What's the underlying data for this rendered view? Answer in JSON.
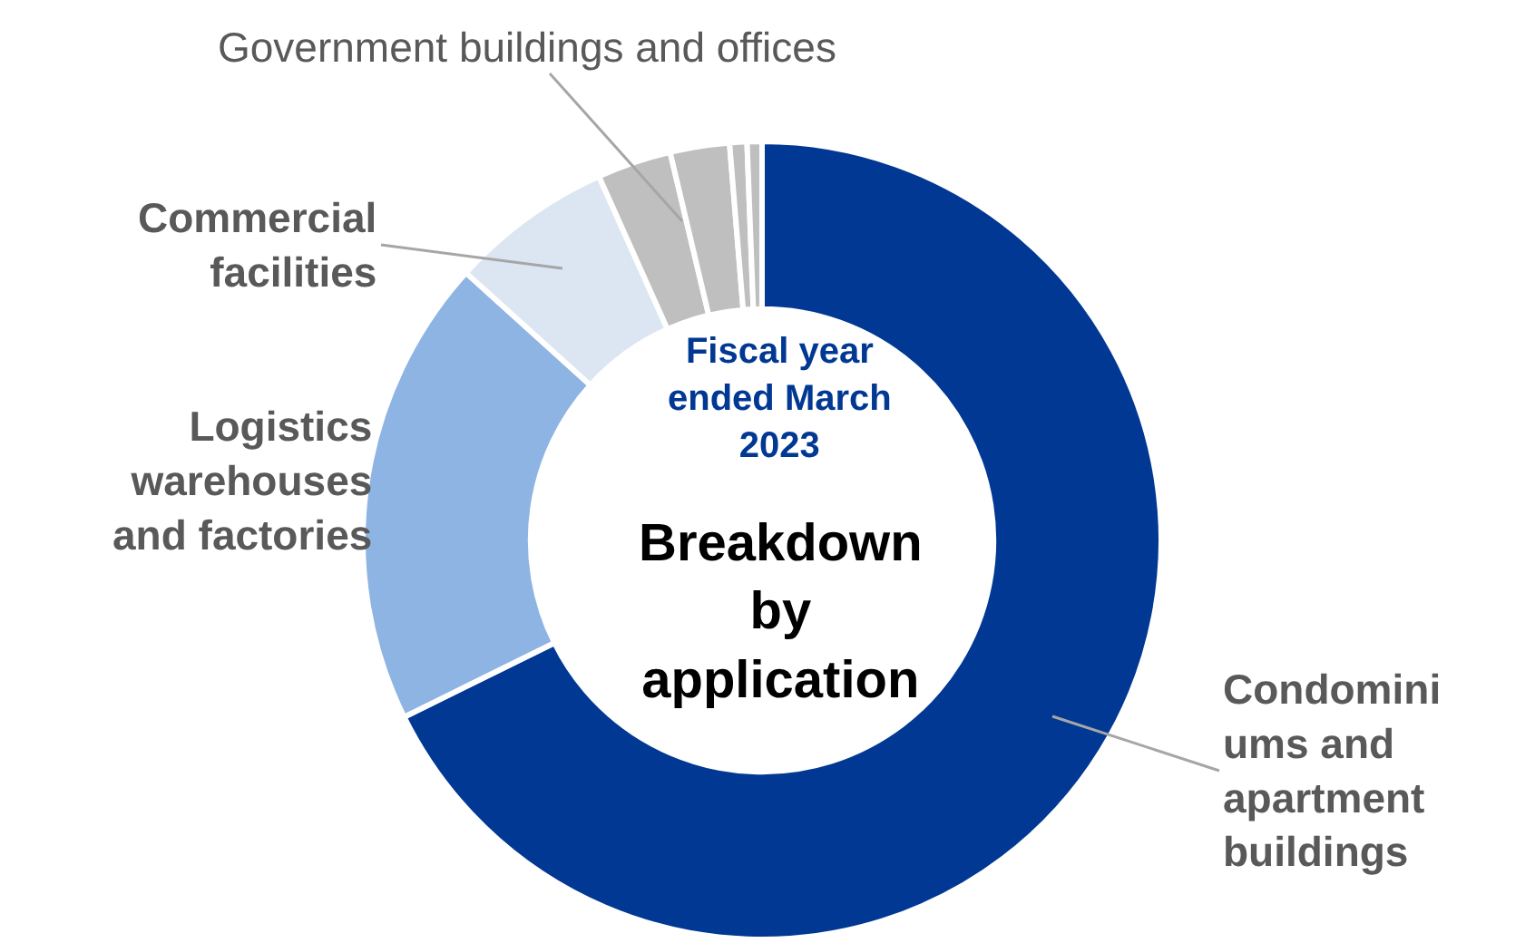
{
  "chart_data": {
    "type": "donut",
    "title": "Breakdown by application",
    "subtitle": "Fiscal year ended March 2023",
    "categories": [
      "Condominiums and apartment buildings",
      "Logistics warehouses and factories",
      "Commercial facilities",
      "Government buildings and offices",
      null,
      null,
      null
    ],
    "values": [
      67.7,
      19,
      6.6,
      3,
      2.4,
      0.7,
      0.6
    ],
    "colors": [
      "#003893",
      "#8eb4e3",
      "#dce6f2",
      "#bfbfbf",
      "#bfbfbf",
      "#bfbfbf",
      "#bfbfbf"
    ],
    "legend": false
  }
}
